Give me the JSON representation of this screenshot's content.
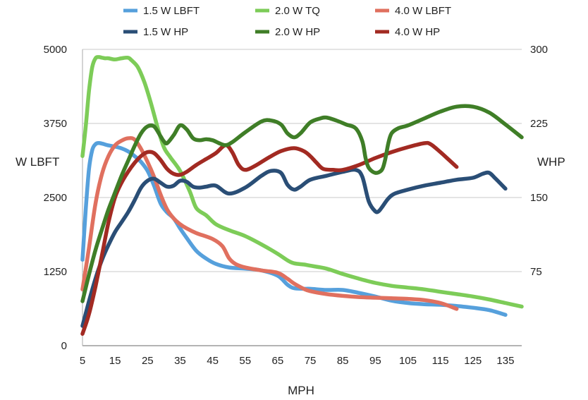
{
  "chart_data": {
    "type": "line",
    "title": "",
    "xlabel": "MPH",
    "ylabel_left": "W LBFT",
    "ylabel_right": "WHP",
    "xlim": [
      5,
      140
    ],
    "ylim_left": [
      0,
      5000
    ],
    "ylim_right": [
      0,
      300
    ],
    "x_ticks": [
      5,
      15,
      25,
      35,
      45,
      55,
      65,
      75,
      85,
      95,
      105,
      115,
      125,
      135
    ],
    "y_ticks_left": [
      0,
      1250,
      2500,
      3750,
      5000
    ],
    "y_ticks_right": [
      75,
      150,
      225,
      300
    ],
    "grid": true,
    "legend_position": "top",
    "series": [
      {
        "name": "1.5 W LBFT",
        "axis": "left",
        "color": "#56a0dc",
        "x": [
          5,
          6,
          7,
          8,
          9,
          10,
          11,
          13,
          15,
          17,
          19,
          21,
          23,
          25,
          27,
          29,
          31,
          33,
          35,
          37,
          40,
          43,
          46,
          50,
          55,
          60,
          65,
          68,
          70,
          73,
          75,
          80,
          85,
          90,
          95,
          100,
          105,
          110,
          115,
          120,
          125,
          130,
          135
        ],
        "y": [
          1450,
          2300,
          2980,
          3300,
          3400,
          3420,
          3410,
          3380,
          3360,
          3330,
          3280,
          3200,
          3100,
          2950,
          2700,
          2400,
          2250,
          2150,
          1980,
          1820,
          1600,
          1470,
          1380,
          1320,
          1300,
          1270,
          1180,
          1030,
          970,
          960,
          960,
          940,
          940,
          890,
          830,
          760,
          720,
          700,
          690,
          670,
          640,
          600,
          520
        ]
      },
      {
        "name": "1.5 W HP",
        "axis": "right",
        "color": "#2a4e76",
        "x": [
          5,
          7,
          9,
          11,
          13,
          15,
          17,
          19,
          21,
          23,
          25,
          27,
          29,
          31,
          33,
          35,
          37,
          39,
          41,
          43,
          46,
          50,
          55,
          60,
          63,
          66,
          68,
          70,
          72,
          75,
          80,
          85,
          89,
          91,
          93,
          95,
          96,
          97,
          99,
          101,
          105,
          110,
          115,
          120,
          125,
          128,
          130,
          132,
          135
        ],
        "y": [
          20,
          45,
          68,
          87,
          102,
          115,
          125,
          135,
          147,
          160,
          167,
          169,
          165,
          161,
          162,
          167,
          166,
          161,
          160,
          161,
          162,
          154,
          160,
          172,
          177,
          175,
          163,
          158,
          161,
          168,
          172,
          176,
          178,
          171,
          146,
          136,
          136,
          140,
          149,
          154,
          158,
          162,
          165,
          168,
          170,
          174,
          175,
          169,
          159
        ]
      },
      {
        "name": "2.0 W TQ",
        "axis": "left",
        "color": "#7dcc58",
        "x": [
          5,
          6,
          7,
          8,
          9,
          10,
          11,
          12,
          13,
          15,
          17,
          19,
          20,
          22,
          24,
          26,
          28,
          30,
          32,
          35,
          38,
          40,
          43,
          46,
          50,
          55,
          60,
          65,
          68,
          70,
          73,
          75,
          80,
          85,
          90,
          95,
          100,
          105,
          110,
          115,
          120,
          125,
          130,
          135,
          140
        ],
        "y": [
          3200,
          3700,
          4300,
          4700,
          4850,
          4870,
          4860,
          4850,
          4850,
          4830,
          4850,
          4860,
          4820,
          4700,
          4450,
          4100,
          3700,
          3350,
          3180,
          2950,
          2600,
          2320,
          2200,
          2050,
          1950,
          1850,
          1710,
          1550,
          1440,
          1390,
          1370,
          1350,
          1300,
          1210,
          1130,
          1060,
          1010,
          980,
          950,
          910,
          870,
          830,
          780,
          720,
          660
        ]
      },
      {
        "name": "2.0 W HP",
        "axis": "right",
        "color": "#3f7e27",
        "x": [
          5,
          7,
          9,
          11,
          13,
          15,
          17,
          19,
          21,
          23,
          25,
          27,
          29,
          30,
          31,
          33,
          35,
          37,
          39,
          41,
          43,
          45,
          47,
          49,
          51,
          55,
          60,
          63,
          66,
          68,
          70,
          72,
          75,
          78,
          80,
          83,
          86,
          89,
          91,
          92,
          93,
          95,
          97,
          98,
          99,
          100,
          102,
          105,
          110,
          115,
          120,
          125,
          130,
          135,
          140
        ],
        "y": [
          45,
          72,
          97,
          118,
          138,
          155,
          172,
          187,
          202,
          215,
          222,
          222,
          212,
          207,
          205,
          213,
          223,
          219,
          210,
          208,
          209,
          208,
          205,
          203,
          206,
          216,
          227,
          228,
          224,
          215,
          211,
          215,
          226,
          230,
          231,
          228,
          224,
          220,
          207,
          190,
          180,
          175,
          178,
          188,
          205,
          215,
          220,
          223,
          230,
          237,
          242,
          242,
          236,
          224,
          211
        ]
      },
      {
        "name": "4.0 W LBFT",
        "axis": "left",
        "color": "#e0705f",
        "x": [
          5,
          7,
          9,
          11,
          13,
          15,
          17,
          19,
          21,
          23,
          25,
          27,
          29,
          31,
          33,
          35,
          37,
          40,
          45,
          48,
          50,
          52,
          55,
          60,
          65,
          68,
          70,
          73,
          75,
          80,
          85,
          90,
          95,
          100,
          105,
          110,
          115,
          120
        ],
        "y": [
          950,
          1650,
          2400,
          2900,
          3200,
          3380,
          3460,
          3500,
          3480,
          3320,
          3100,
          2850,
          2550,
          2300,
          2150,
          2050,
          1980,
          1900,
          1800,
          1680,
          1480,
          1380,
          1320,
          1270,
          1230,
          1130,
          1050,
          960,
          920,
          870,
          840,
          820,
          810,
          800,
          790,
          770,
          720,
          620
        ]
      },
      {
        "name": "4.0 W HP",
        "axis": "right",
        "color": "#a22a22",
        "x": [
          5,
          7,
          9,
          11,
          13,
          15,
          17,
          19,
          21,
          23,
          25,
          27,
          29,
          31,
          33,
          35,
          37,
          40,
          43,
          46,
          49,
          51,
          53,
          55,
          58,
          62,
          66,
          70,
          73,
          75,
          77,
          79,
          82,
          85,
          90,
          95,
          100,
          105,
          110,
          112,
          115,
          118,
          120
        ],
        "y": [
          12,
          32,
          60,
          92,
          125,
          150,
          165,
          176,
          185,
          192,
          196,
          195,
          188,
          179,
          174,
          173,
          176,
          183,
          189,
          195,
          203,
          196,
          183,
          178,
          182,
          190,
          197,
          200,
          197,
          192,
          185,
          179,
          178,
          178,
          183,
          190,
          196,
          201,
          205,
          204,
          196,
          187,
          181
        ]
      }
    ]
  }
}
